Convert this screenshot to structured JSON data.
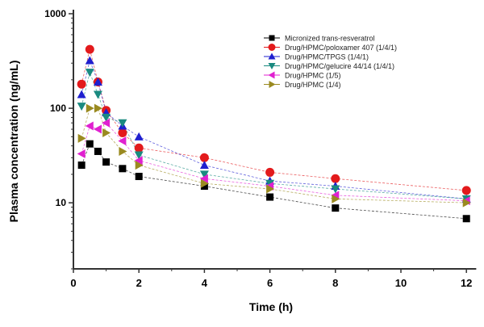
{
  "chart_data": {
    "type": "line",
    "title": "",
    "xlabel": "Time (h)",
    "ylabel": "Plasma concentration (ng/mL)",
    "xlim": [
      0,
      12.3
    ],
    "ylim": [
      2,
      1000
    ],
    "yscale": "log",
    "xticks": [
      "0",
      "2",
      "4",
      "6",
      "8",
      "10",
      "12"
    ],
    "yticks": [
      "10",
      "100",
      "1000"
    ],
    "legend_position": "top-right",
    "grid": false,
    "x": [
      0.25,
      0.5,
      0.75,
      1,
      1.5,
      2,
      4,
      6,
      8,
      12
    ],
    "series": [
      {
        "name": "Micronized trans-resveratrol",
        "color": "#000000",
        "marker": "square",
        "values": [
          25,
          42,
          35,
          27,
          23,
          19,
          15,
          11.5,
          8.8,
          6.8
        ]
      },
      {
        "name": "Drug/HPMC/poloxamer 407 (1/4/1)",
        "color": "#e31a1c",
        "marker": "circle",
        "values": [
          180,
          420,
          190,
          95,
          55,
          38,
          30,
          21,
          18,
          13.5
        ]
      },
      {
        "name": "Drug/HPMC/TPGS (1/4/1)",
        "color": "#1f1fcf",
        "marker": "triangle-up",
        "values": [
          140,
          320,
          190,
          90,
          65,
          50,
          25,
          17,
          15,
          11
        ]
      },
      {
        "name": "Drug/HPMC/gelucire 44/14 (1/4/1)",
        "color": "#1a8a80",
        "marker": "triangle-down",
        "values": [
          105,
          240,
          140,
          80,
          70,
          32,
          20,
          16,
          14,
          11
        ]
      },
      {
        "name": "Drug/HPMC (1/5)",
        "color": "#e020d0",
        "marker": "triangle-left",
        "values": [
          33,
          65,
          60,
          70,
          45,
          28,
          18,
          15,
          12,
          10.5
        ]
      },
      {
        "name": "Drug/HPMC (1/4)",
        "color": "#9a8a20",
        "marker": "triangle-right",
        "values": [
          48,
          100,
          100,
          55,
          35,
          25,
          16,
          14,
          11,
          10
        ]
      }
    ]
  }
}
